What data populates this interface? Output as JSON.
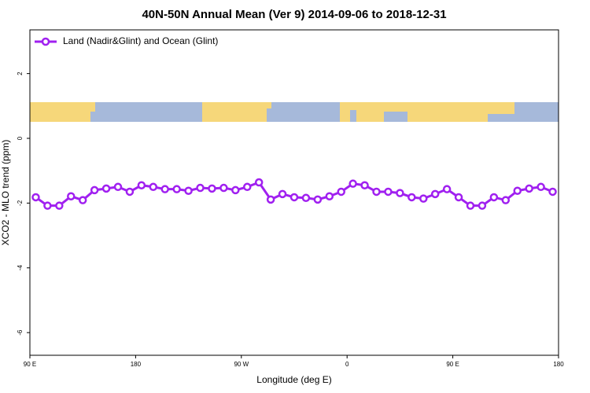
{
  "chart_data": {
    "type": "line",
    "title": "40N-50N Annual Mean (Ver 9)   2014-09-06 to 2018-12-31",
    "x_label": "Longitude (deg E)",
    "y_label": "XCO2 - MLO trend (ppm)",
    "x": [
      95,
      105,
      115,
      125,
      135,
      145,
      155,
      165,
      175,
      185,
      195,
      205,
      215,
      225,
      235,
      245,
      255,
      265,
      275,
      285,
      295,
      305,
      315,
      325,
      335,
      345,
      355,
      365,
      375,
      385,
      395,
      405,
      415,
      425,
      435,
      445,
      455,
      465,
      475,
      485,
      495,
      505,
      515,
      525,
      535
    ],
    "series": [
      {
        "name": "Land (Nadir&Glint) and Ocean (Glint)",
        "color": "#a020f0",
        "values": [
          -1.82,
          -2.08,
          -2.08,
          -1.79,
          -1.91,
          -1.6,
          -1.55,
          -1.5,
          -1.65,
          -1.45,
          -1.5,
          -1.57,
          -1.57,
          -1.62,
          -1.53,
          -1.55,
          -1.53,
          -1.6,
          -1.5,
          -1.36,
          -1.89,
          -1.72,
          -1.82,
          -1.84,
          -1.89,
          -1.79,
          -1.65,
          -1.4,
          -1.45,
          -1.65,
          -1.65,
          -1.69,
          -1.82,
          -1.86,
          -1.72,
          -1.57,
          -1.82,
          -2.08,
          -2.08,
          -1.82,
          -1.91,
          -1.62,
          -1.55,
          -1.5,
          -1.65
        ]
      }
    ],
    "xlim": [
      90,
      540
    ],
    "xticks": [
      {
        "value": 90,
        "label": "90 E"
      },
      {
        "value": 180,
        "label": "180"
      },
      {
        "value": 270,
        "label": "90 W"
      },
      {
        "value": 360,
        "label": "0"
      },
      {
        "value": 450,
        "label": "90 E"
      },
      {
        "value": 540,
        "label": "180"
      }
    ],
    "ylim": [
      -6.7,
      3.35
    ],
    "yticks": [
      2,
      0,
      -2,
      -4,
      -6
    ],
    "legend": "top-left"
  }
}
